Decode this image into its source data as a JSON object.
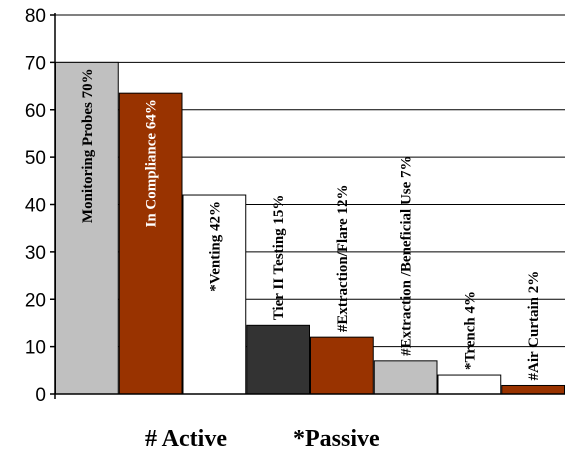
{
  "chart_data": {
    "type": "bar",
    "categories": [
      "Monitoring Probes 70%",
      "In Compliance 64%",
      "*Venting 42%",
      "Tier II Testing 15%",
      "#Extraction/Flare 12%",
      "#Extraction /Beneficial Use 7%",
      "*Trench 4%",
      "#Air Curtain 2%"
    ],
    "values": [
      70,
      63.5,
      42,
      14.5,
      12,
      7,
      4,
      1.8
    ],
    "colors": [
      "#c0c0c0",
      "#993300",
      "#ffffff",
      "#333333",
      "#993300",
      "#c0c0c0",
      "#ffffff",
      "#993300"
    ],
    "label_colors": [
      "#000000",
      "#ffffff",
      "#000000",
      "#000000",
      "#000000",
      "#000000",
      "#000000",
      "#000000"
    ],
    "label_inside": [
      true,
      true,
      true,
      false,
      false,
      false,
      false,
      false
    ],
    "ylim": [
      0,
      80
    ],
    "yticks": [
      "0",
      "10",
      "20",
      "30",
      "40",
      "50",
      "60",
      "70",
      "80"
    ],
    "grid": true,
    "caption_left": "# Active",
    "caption_right": "*Passive"
  }
}
